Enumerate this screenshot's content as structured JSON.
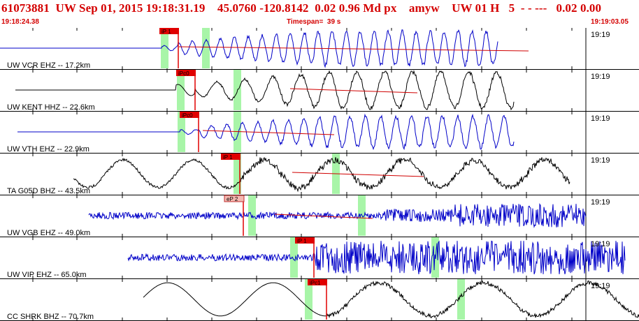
{
  "header": {
    "event_id": "61073881",
    "network": "UW",
    "datetime": "Sep 01, 2015 19:18:31.19",
    "lat": "45.0760",
    "lon": "-120.8142",
    "vals": "0.02 0.96",
    "mag_type": "Md",
    "flag": "px",
    "author": "amyw",
    "net2": "UW 01 H",
    "count": "5",
    "dashes": "- - ---",
    "tail": "0.02 0.00",
    "start_time": "19:18:24.38",
    "timespan": "Timespan=  39 s",
    "end_time": "19:19:03.05"
  },
  "traces": [
    {
      "label": "UW VCR EHZ -- 17.2km",
      "time": "19:19",
      "p_pick": "iP 1",
      "color": "#0000c8"
    },
    {
      "label": "UW KENT HHZ -- 22.6km",
      "time": "19:19",
      "p_pick": "iPc0",
      "color": "#000000"
    },
    {
      "label": "UW VTH EHZ -- 22.9km",
      "time": "19:19",
      "p_pick": "iPc0",
      "color": "#0000c8"
    },
    {
      "label": "TA G05D BHZ -- 43.5km",
      "time": "19:19",
      "p_pick": "iP 1",
      "color": "#000000"
    },
    {
      "label": "UW VGB EHZ -- 49.0km",
      "time": "19:19",
      "p_pick": "eP 2",
      "color": "#0000c8"
    },
    {
      "label": "UW VIP EHZ -- 65.0km",
      "time": "19:19",
      "p_pick": "iP 1",
      "color": "#0000c8"
    },
    {
      "label": "CC SHRK BHZ -- 70.7km",
      "time": "19:19",
      "p_pick": "iPc1",
      "color": "#000000"
    }
  ],
  "colors": {
    "header_red": "#d40000",
    "pick_red": "#e00000",
    "window_green": "#a8f5a8",
    "coda_red": "#d00000"
  }
}
